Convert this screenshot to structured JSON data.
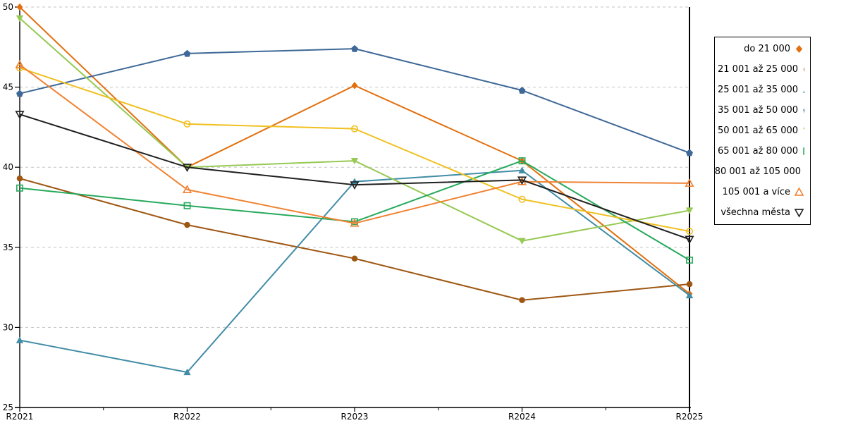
{
  "chart_data": {
    "type": "line",
    "title": "",
    "xlabel": "",
    "ylabel": "",
    "x": [
      "R2021",
      "R2022",
      "R2023",
      "R2024",
      "R2025"
    ],
    "ylim": [
      25,
      50
    ],
    "yticks": [
      25,
      30,
      35,
      40,
      45,
      50
    ],
    "grid": "horizontal-dashed",
    "legend_position": "right-outside",
    "reference_line_x": "R2025",
    "series": [
      {
        "name": "do 21 000",
        "color": "#E2700F",
        "marker": "diamond",
        "fill": "filled",
        "values": [
          50.0,
          40.0,
          45.1,
          40.4,
          32.1
        ]
      },
      {
        "name": "21 001 až 25 000",
        "color": "#9E5713",
        "marker": "circle",
        "fill": "filled",
        "values": [
          39.3,
          36.4,
          34.3,
          31.7,
          32.7
        ]
      },
      {
        "name": "25 001 až 35 000",
        "color": "#418CA6",
        "marker": "triangle-up",
        "fill": "filled",
        "values": [
          29.2,
          27.2,
          39.1,
          39.8,
          32.0
        ]
      },
      {
        "name": "35 001 až 50 000",
        "color": "#3E6897",
        "marker": "pentagon",
        "fill": "filled",
        "values": [
          44.6,
          47.1,
          47.4,
          44.8,
          40.9
        ]
      },
      {
        "name": "50 001 až 65 000",
        "color": "#97C954",
        "marker": "triangle-down",
        "fill": "filled",
        "values": [
          49.3,
          40.0,
          40.4,
          35.4,
          37.3
        ]
      },
      {
        "name": "65 001 až 80 000",
        "color": "#27A95C",
        "marker": "square",
        "fill": "open",
        "values": [
          38.7,
          37.6,
          36.6,
          40.4,
          34.2
        ]
      },
      {
        "name": "80 001 až 105 000",
        "color": "#F0C020",
        "marker": "circle",
        "fill": "open",
        "values": [
          46.2,
          42.7,
          42.4,
          38.0,
          36.0
        ]
      },
      {
        "name": "105 001 a více",
        "color": "#F08232",
        "marker": "triangle-up",
        "fill": "open",
        "values": [
          46.4,
          38.6,
          36.5,
          39.1,
          39.0
        ]
      },
      {
        "name": "všechna města",
        "color": "#1F1F1F",
        "marker": "triangle-down",
        "fill": "open",
        "values": [
          43.3,
          40.0,
          38.9,
          39.2,
          35.5
        ]
      }
    ]
  },
  "colors": {
    "background": "#FFFFFF",
    "axis": "#000000",
    "grid": "#C3C3C3",
    "text": "#000000",
    "legend_border": "#000000"
  }
}
